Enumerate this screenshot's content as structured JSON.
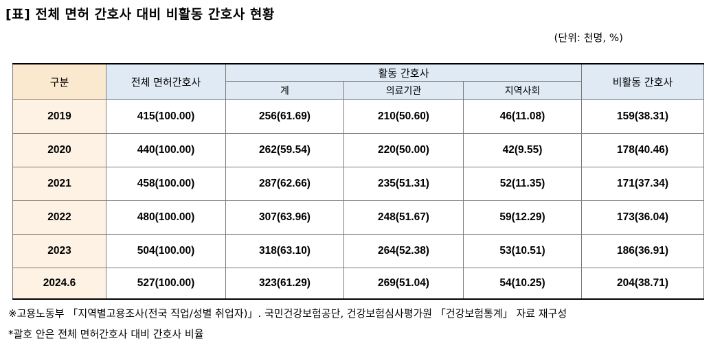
{
  "title": "[표] 전체 면허 간호사 대비 비활동 간호사 현황",
  "unit": "(단위: 천명, %)",
  "headers": {
    "category": "구분",
    "total_licensed": "전체 면허간호사",
    "active_group": "활동 간호사",
    "active_total": "계",
    "medical_institution": "의료기관",
    "community": "지역사회",
    "inactive": "비활동 간호사"
  },
  "rows": [
    [
      "2019",
      "415(100.00)",
      "256(61.69)",
      "210(50.60)",
      "46(11.08)",
      "159(38.31)"
    ],
    [
      "2020",
      "440(100.00)",
      "262(59.54)",
      "220(50.00)",
      "42(9.55)",
      "178(40.46)"
    ],
    [
      "2021",
      "458(100.00)",
      "287(62.66)",
      "235(51.31)",
      "52(11.35)",
      "171(37.34)"
    ],
    [
      "2022",
      "480(100.00)",
      "307(63.96)",
      "248(51.67)",
      "59(12.29)",
      "173(36.04)"
    ],
    [
      "2023",
      "504(100.00)",
      "318(63.10)",
      "264(52.38)",
      "53(10.51)",
      "186(36.91)"
    ],
    [
      "2024.6",
      "527(100.00)",
      "323(61.29)",
      "269(51.04)",
      "54(10.25)",
      "204(38.71)"
    ]
  ],
  "notes": [
    "※고용노동부 「지역별고용조사(전국 직업/성별 취업자)」. 국민건강보험공단, 건강보험심사평가원 「건강보험통계」 자료 재구성",
    "*괄호 안은 전체 면허간호사 대비 간호사 비율"
  ]
}
